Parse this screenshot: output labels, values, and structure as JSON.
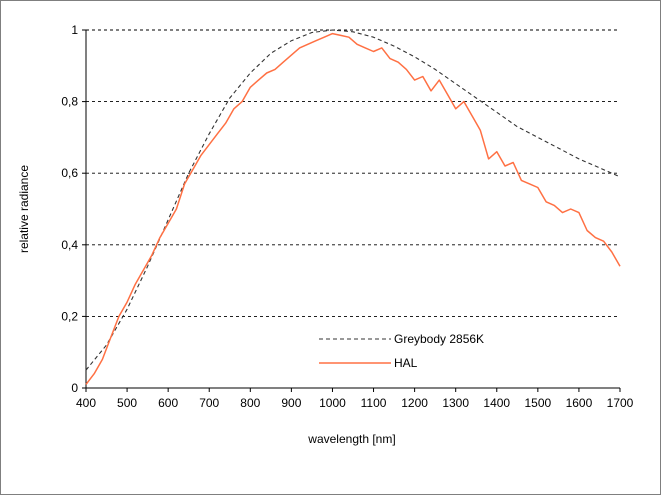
{
  "chart_data": {
    "type": "line",
    "xlabel": "wavelength [nm]",
    "ylabel": "relative radiance",
    "xlim": [
      400,
      1700
    ],
    "ylim": [
      0,
      1
    ],
    "x_ticks": [
      "400",
      "500",
      "600",
      "700",
      "800",
      "900",
      "1000",
      "1100",
      "1200",
      "1300",
      "1400",
      "1500",
      "1600",
      "1700"
    ],
    "y_ticks": [
      "0",
      "0,2",
      "0,4",
      "0,6",
      "0,8",
      "1"
    ],
    "grid": "horizontal dashed",
    "legend_position": "lower-center",
    "series": [
      {
        "name": "Greybody 2856K",
        "style": "dashed",
        "color": "#333333",
        "x": [
          400,
          450,
          500,
          550,
          600,
          650,
          700,
          750,
          800,
          850,
          900,
          950,
          1000,
          1050,
          1100,
          1150,
          1200,
          1250,
          1300,
          1350,
          1400,
          1450,
          1500,
          1550,
          1600,
          1650,
          1700
        ],
        "y": [
          0.05,
          0.12,
          0.22,
          0.34,
          0.47,
          0.6,
          0.71,
          0.81,
          0.88,
          0.935,
          0.97,
          0.993,
          1.0,
          0.995,
          0.98,
          0.955,
          0.925,
          0.89,
          0.85,
          0.81,
          0.77,
          0.73,
          0.7,
          0.67,
          0.64,
          0.615,
          0.59
        ]
      },
      {
        "name": "HAL",
        "style": "solid",
        "color": "#ff7043",
        "x": [
          400,
          420,
          440,
          460,
          480,
          500,
          520,
          540,
          560,
          580,
          600,
          620,
          640,
          660,
          680,
          700,
          720,
          740,
          760,
          780,
          800,
          820,
          840,
          860,
          880,
          900,
          920,
          940,
          960,
          980,
          1000,
          1020,
          1040,
          1060,
          1080,
          1100,
          1120,
          1140,
          1160,
          1180,
          1200,
          1220,
          1240,
          1260,
          1280,
          1300,
          1320,
          1340,
          1360,
          1380,
          1400,
          1420,
          1440,
          1460,
          1480,
          1500,
          1520,
          1540,
          1560,
          1580,
          1600,
          1620,
          1640,
          1660,
          1680,
          1700
        ],
        "y": [
          0.01,
          0.04,
          0.08,
          0.14,
          0.2,
          0.24,
          0.29,
          0.33,
          0.37,
          0.42,
          0.46,
          0.5,
          0.57,
          0.61,
          0.65,
          0.68,
          0.71,
          0.74,
          0.78,
          0.8,
          0.84,
          0.86,
          0.88,
          0.89,
          0.91,
          0.93,
          0.95,
          0.96,
          0.97,
          0.98,
          0.99,
          0.985,
          0.98,
          0.96,
          0.95,
          0.94,
          0.95,
          0.92,
          0.91,
          0.89,
          0.86,
          0.87,
          0.83,
          0.86,
          0.82,
          0.78,
          0.8,
          0.76,
          0.72,
          0.64,
          0.66,
          0.62,
          0.63,
          0.58,
          0.57,
          0.56,
          0.52,
          0.51,
          0.49,
          0.5,
          0.49,
          0.44,
          0.42,
          0.41,
          0.38,
          0.34
        ]
      }
    ]
  }
}
